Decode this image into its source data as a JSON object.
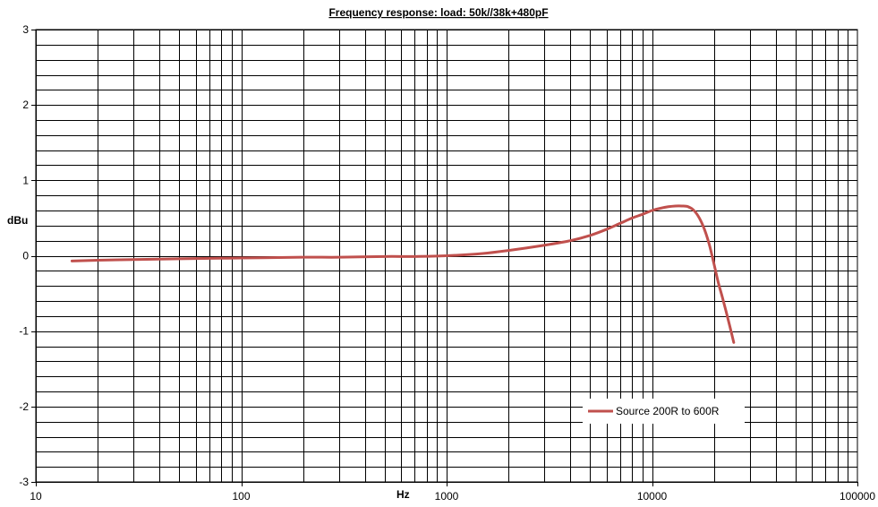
{
  "chart_data": {
    "type": "line",
    "title": "Frequency response:  load: 50k//38k+480pF",
    "xlabel": "Hz",
    "ylabel": "dBu",
    "x_scale": "log",
    "xlim": [
      10,
      100000
    ],
    "ylim": [
      -3,
      3
    ],
    "x_ticks": [
      "10",
      "100",
      "1000",
      "10000",
      "100000"
    ],
    "y_ticks": [
      "3",
      "2",
      "1",
      "0",
      "-1",
      "-2",
      "-3"
    ],
    "y_minor_step": 0.2,
    "grid": true,
    "legend_position": "bottom-right",
    "line_color": "#c0504d",
    "series": [
      {
        "name": "Source 200R to 600R",
        "x": [
          15,
          20,
          30,
          50,
          100,
          200,
          300,
          500,
          700,
          1000,
          1500,
          2000,
          3000,
          4000,
          5000,
          6000,
          7000,
          8000,
          9000,
          10000,
          11000,
          12000,
          13000,
          14000,
          15000,
          16000,
          17000,
          18000,
          19000,
          20000,
          21000,
          22000,
          23000,
          24000,
          25000
        ],
        "y": [
          -0.07,
          -0.06,
          -0.05,
          -0.04,
          -0.03,
          -0.02,
          -0.02,
          -0.01,
          -0.01,
          0.0,
          0.03,
          0.07,
          0.14,
          0.2,
          0.27,
          0.35,
          0.43,
          0.5,
          0.55,
          0.6,
          0.63,
          0.65,
          0.66,
          0.66,
          0.65,
          0.6,
          0.5,
          0.35,
          0.15,
          -0.1,
          -0.35,
          -0.55,
          -0.75,
          -0.95,
          -1.15
        ]
      }
    ]
  }
}
